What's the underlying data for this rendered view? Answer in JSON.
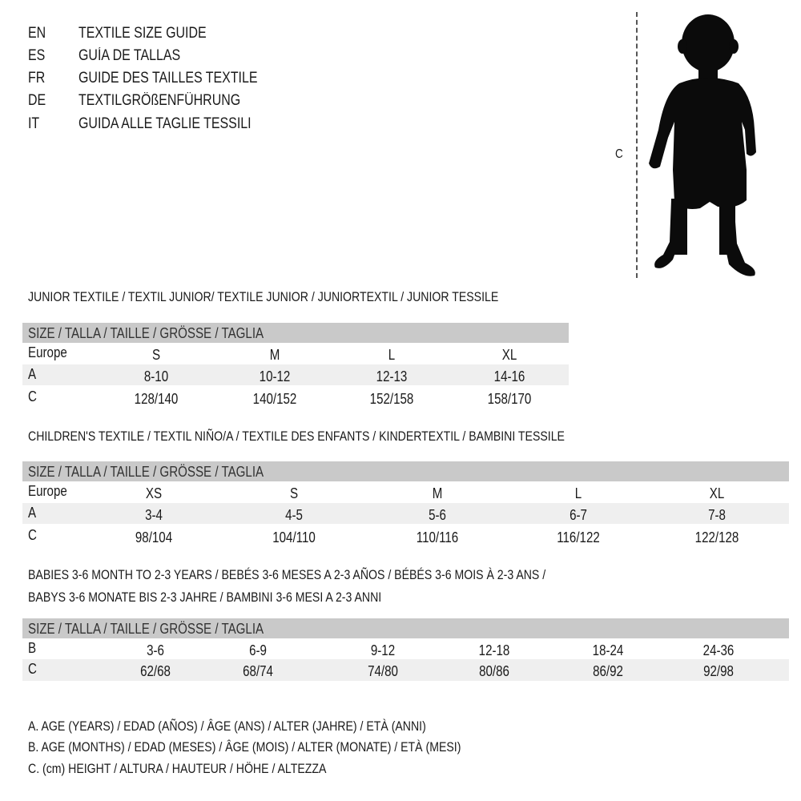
{
  "header": {
    "languages": [
      {
        "code": "EN",
        "text": "TEXTILE SIZE GUIDE"
      },
      {
        "code": "ES",
        "text": "GUÍA DE TALLAS"
      },
      {
        "code": "FR",
        "text": "GUIDE DES TAILLES TEXTILE"
      },
      {
        "code": "DE",
        "text": "TEXTILGRÖßENFÜHRUNG"
      },
      {
        "code": "IT",
        "text": "GUIDA ALLE TAGLIE TESSILI"
      }
    ]
  },
  "figure": {
    "measure_label": "C",
    "icon": "child-silhouette-icon"
  },
  "colors": {
    "header_bar": "#c9c9c9",
    "shaded_row": "#efefef",
    "text": "#1a1a1a"
  },
  "tables": [
    {
      "title": "JUNIOR TEXTILE / TEXTIL JUNIOR/ TEXTILE JUNIOR / JUNIORTEXTIL / JUNIOR TESSILE",
      "size_header": "SIZE / TALLA / TAILLE / GRÖSSE / TAGLIA",
      "rows": [
        {
          "label": "Europe",
          "values": [
            "S",
            "M",
            "L",
            "XL"
          ]
        },
        {
          "label": "A",
          "values": [
            "8-10",
            "10-12",
            "12-13",
            "14-16"
          ]
        },
        {
          "label": "C",
          "values": [
            "128/140",
            "140/152",
            "152/158",
            "158/170"
          ]
        }
      ]
    },
    {
      "title": "CHILDREN'S TEXTILE / TEXTIL NIÑO/A / TEXTILE DES ENFANTS / KINDERTEXTIL / BAMBINI TESSILE",
      "size_header": "SIZE / TALLA / TAILLE / GRÖSSE / TAGLIA",
      "rows": [
        {
          "label": "Europe",
          "values": [
            "XS",
            "S",
            "M",
            "L",
            "XL"
          ]
        },
        {
          "label": "A",
          "values": [
            "3-4",
            "4-5",
            "5-6",
            "6-7",
            "7-8"
          ]
        },
        {
          "label": "C",
          "values": [
            "98/104",
            "104/110",
            "110/116",
            "116/122",
            "122/128"
          ]
        }
      ]
    },
    {
      "title_lines": [
        "BABIES 3-6 MONTH TO 2-3 YEARS / BEBÉS 3-6 MESES A 2-3 AÑOS / BÉBÉS 3-6 MOIS À 2-3 ANS /",
        "BABYS 3-6 MONATE BIS 2-3 JAHRE / BAMBINI 3-6 MESI A 2-3 ANNI"
      ],
      "size_header": "SIZE / TALLA / TAILLE / GRÖSSE / TAGLIA",
      "rows": [
        {
          "label": "B",
          "values": [
            "3-6",
            "6-9",
            "9-12",
            "12-18",
            "18-24",
            "24-36"
          ]
        },
        {
          "label": "C",
          "values": [
            "62/68",
            "68/74",
            "74/80",
            "80/86",
            "86/92",
            "92/98"
          ]
        }
      ]
    }
  ],
  "legend": [
    "A. AGE (YEARS) / EDAD (AÑOS) / ÂGE (ANS) / ALTER (JAHRE) / ETÀ (ANNI)",
    "B. AGE (MONTHS) / EDAD (MESES) / ÂGE (MOIS) / ALTER (MONATE) / ETÀ (MESI)",
    "C. (cm) HEIGHT / ALTURA / HAUTEUR / HÖHE / ALTEZZA"
  ]
}
